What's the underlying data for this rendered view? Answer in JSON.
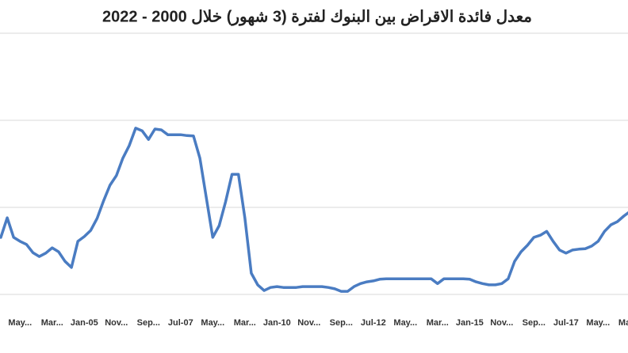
{
  "chart_data": {
    "type": "line",
    "title": "معدل فائدة الاقراض بين البنوك لفترة (3 شهور) خلال 2000 - 2022",
    "categories": [
      null,
      null,
      null,
      "May...",
      null,
      null,
      null,
      null,
      "Mar...",
      null,
      null,
      null,
      null,
      "Jan-05",
      null,
      null,
      null,
      null,
      "Nov...",
      null,
      null,
      null,
      null,
      "Sep...",
      null,
      null,
      null,
      null,
      "Jul-07",
      null,
      null,
      null,
      null,
      "May...",
      null,
      null,
      null,
      null,
      "Mar...",
      null,
      null,
      null,
      null,
      "Jan-10",
      null,
      null,
      null,
      null,
      "Nov...",
      null,
      null,
      null,
      null,
      "Sep...",
      null,
      null,
      null,
      null,
      "Jul-12",
      null,
      null,
      null,
      null,
      "May...",
      null,
      null,
      null,
      null,
      "Mar...",
      null,
      null,
      null,
      null,
      "Jan-15",
      null,
      null,
      null,
      null,
      "Nov...",
      null,
      null,
      null,
      null,
      "Sep...",
      null,
      null,
      null,
      null,
      "Jul-17",
      null,
      null,
      null,
      null,
      "May...",
      null,
      null,
      null,
      null,
      "May..."
    ],
    "values": [
      1.31,
      1.76,
      1.31,
      1.22,
      1.15,
      0.96,
      0.87,
      0.95,
      1.07,
      0.98,
      0.76,
      0.62,
      1.22,
      1.33,
      1.47,
      1.75,
      2.15,
      2.51,
      2.73,
      3.13,
      3.42,
      3.82,
      3.76,
      3.56,
      3.8,
      3.78,
      3.67,
      3.67,
      3.67,
      3.65,
      3.64,
      3.13,
      2.22,
      1.31,
      1.58,
      2.13,
      2.76,
      2.76,
      1.76,
      0.49,
      0.22,
      0.09,
      0.16,
      0.18,
      0.16,
      0.16,
      0.16,
      0.18,
      0.18,
      0.18,
      0.18,
      0.16,
      0.13,
      0.07,
      0.07,
      0.18,
      0.25,
      0.29,
      0.31,
      0.35,
      0.36,
      0.36,
      0.36,
      0.36,
      0.36,
      0.36,
      0.36,
      0.36,
      0.25,
      0.36,
      0.36,
      0.36,
      0.36,
      0.35,
      0.29,
      0.25,
      0.22,
      0.22,
      0.25,
      0.36,
      0.76,
      0.98,
      1.13,
      1.31,
      1.36,
      1.45,
      1.22,
      1.02,
      0.95,
      1.02,
      1.04,
      1.05,
      1.11,
      1.22,
      1.45,
      1.6,
      1.67,
      1.8,
      1.91
    ],
    "color": "#4a7cc2",
    "ylim": [
      0,
      6
    ],
    "yticks": [
      0,
      2,
      4,
      6
    ],
    "grid": true
  }
}
